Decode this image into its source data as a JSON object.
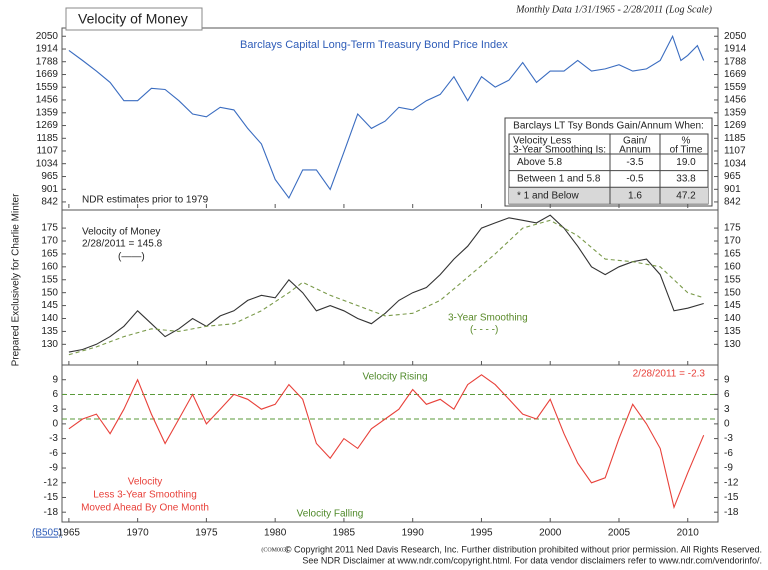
{
  "header": {
    "note": "Monthly Data 1/31/1965 - 2/28/2011 (Log Scale)",
    "side_label": "Prepared Exclusively for Charlie Minter"
  },
  "chart_data": [
    {
      "type": "line",
      "title": "Velocity of Money",
      "subtitle": "Barclays Capital Long-Term Treasury Bond Price Index",
      "log_scale": true,
      "xlim": [
        1964.5,
        2012.2
      ],
      "ylim": [
        815,
        2120
      ],
      "yticks": [
        842,
        901,
        965,
        1034,
        1107,
        1185,
        1269,
        1359,
        1456,
        1559,
        1669,
        1788,
        1914,
        2050
      ],
      "annotations": [
        "NDR estimates prior to 1979"
      ],
      "series": [
        {
          "color": "#3a6cc0",
          "x": [
            1965,
            1966,
            1967,
            1968,
            1969,
            1970,
            1971,
            1972,
            1973,
            1974,
            1975,
            1976,
            1977,
            1978,
            1979,
            1980,
            1981,
            1982,
            1983,
            1984,
            1985,
            1986,
            1987,
            1988,
            1989,
            1990,
            1991,
            1992,
            1993,
            1994,
            1995,
            1996,
            1997,
            1998,
            1999,
            2000,
            2001,
            2002,
            2003,
            2004,
            2005,
            2006,
            2007,
            2008,
            2008.9,
            2009.5,
            2010,
            2010.7,
            2011.16
          ],
          "values": [
            1900,
            1800,
            1700,
            1600,
            1450,
            1450,
            1550,
            1540,
            1450,
            1350,
            1330,
            1400,
            1380,
            1250,
            1150,
            950,
            860,
            1000,
            1000,
            900,
            1100,
            1350,
            1250,
            1300,
            1400,
            1380,
            1450,
            1500,
            1650,
            1450,
            1650,
            1560,
            1620,
            1780,
            1600,
            1700,
            1700,
            1800,
            1700,
            1720,
            1760,
            1700,
            1720,
            1800,
            2050,
            1800,
            1850,
            1950,
            1800
          ]
        }
      ],
      "table": {
        "title": "Barclays LT Tsy Bonds Gain/Annum When:",
        "columns": [
          [
            "Velocity Less",
            "3-Year Smoothing Is:"
          ],
          [
            "Gain/",
            "Annum"
          ],
          [
            "%",
            "of Time"
          ]
        ],
        "rows": [
          [
            "Above 5.8",
            "-3.5",
            "19.0"
          ],
          [
            "Between 1 and 5.8",
            "-0.5",
            "33.8"
          ],
          [
            "* 1 and Below",
            "1.6",
            "47.2"
          ]
        ]
      }
    },
    {
      "type": "line",
      "xlim": [
        1964.5,
        2012.2
      ],
      "ylim": [
        122,
        182
      ],
      "yticks": [
        130,
        135,
        140,
        145,
        150,
        155,
        160,
        165,
        170,
        175
      ],
      "annotations": [
        "2/28/2011 = 145.8",
        "(——)",
        "(- - - -)"
      ],
      "series": [
        {
          "name": "Velocity of Money",
          "color": "#333333",
          "dash": false,
          "x": [
            1965,
            1966,
            1967,
            1968,
            1969,
            1970,
            1971,
            1972,
            1973,
            1974,
            1975,
            1976,
            1977,
            1978,
            1979,
            1980,
            1981,
            1982,
            1983,
            1984,
            1985,
            1986,
            1987,
            1988,
            1989,
            1990,
            1991,
            1992,
            1993,
            1994,
            1995,
            1996,
            1997,
            1998,
            1999,
            2000,
            2001,
            2002,
            2003,
            2004,
            2005,
            2006,
            2007,
            2008,
            2009,
            2010,
            2011.16
          ],
          "values": [
            127,
            128,
            130,
            133,
            137,
            143,
            138,
            133,
            136,
            140,
            137,
            141,
            143,
            147,
            149,
            148,
            155,
            150,
            143,
            145,
            143,
            140,
            138,
            142,
            147,
            150,
            152,
            157,
            163,
            168,
            175,
            177,
            179,
            178,
            177,
            180,
            175,
            168,
            160,
            157,
            160,
            162,
            163,
            157,
            143,
            144,
            145.8
          ]
        },
        {
          "name": "3-Year Smoothing",
          "color": "#7a9a4a",
          "dash": true,
          "x": [
            1965,
            1967,
            1969,
            1971,
            1973,
            1975,
            1977,
            1979,
            1981,
            1982,
            1984,
            1986,
            1988,
            1990,
            1992,
            1994,
            1996,
            1998,
            2000,
            2002,
            2004,
            2006,
            2008,
            2010,
            2011.16
          ],
          "values": [
            126,
            129,
            133,
            136,
            135,
            137,
            138,
            143,
            150,
            154,
            149,
            145,
            141,
            142,
            147,
            156,
            165,
            175,
            178,
            172,
            163,
            162,
            160,
            150,
            148
          ]
        }
      ]
    },
    {
      "type": "line",
      "xlim": [
        1964.5,
        2012.2
      ],
      "ylim": [
        -20,
        12
      ],
      "yticks": [
        -18,
        -15,
        -12,
        -9,
        -6,
        -3,
        0,
        3,
        6,
        9
      ],
      "xticks": [
        1965,
        1970,
        1975,
        1980,
        1985,
        1990,
        1995,
        2000,
        2005,
        2010
      ],
      "reference_lines": [
        {
          "value": 6,
          "color": "#5a9a3a"
        },
        {
          "value": 1,
          "color": "#5a9a3a"
        }
      ],
      "annotations": [
        "Velocity Rising",
        "Velocity Falling",
        "2/28/2011 = -2.3",
        "Velocity",
        "Less 3-Year Smoothing",
        "Moved Ahead By One Month"
      ],
      "series": [
        {
          "color": "#e8413a",
          "x": [
            1965,
            1966,
            1967,
            1968,
            1969,
            1970,
            1971,
            1972,
            1973,
            1974,
            1975,
            1976,
            1977,
            1978,
            1979,
            1980,
            1981,
            1982,
            1983,
            1984,
            1985,
            1986,
            1987,
            1988,
            1989,
            1990,
            1991,
            1992,
            1993,
            1994,
            1995,
            1996,
            1997,
            1998,
            1999,
            2000,
            2001,
            2002,
            2003,
            2004,
            2005,
            2006,
            2007,
            2008,
            2009,
            2010,
            2011.16
          ],
          "values": [
            -1,
            1,
            2,
            -2,
            3,
            9,
            2,
            -4,
            1,
            6,
            0,
            3,
            6,
            5,
            3,
            4,
            8,
            5,
            -4,
            -7,
            -3,
            -5,
            -1,
            1,
            3,
            7,
            4,
            5,
            3,
            8,
            10,
            8,
            5,
            2,
            1,
            5,
            -2,
            -8,
            -12,
            -11,
            -3,
            4,
            0,
            -5,
            -17,
            -10,
            -2.3
          ]
        }
      ]
    }
  ],
  "footer": {
    "code": "(B505)",
    "ref": "(COM003)",
    "lines": [
      "© Copyright 2011 Ned Davis Research, Inc.  Further distribution prohibited without prior permission.  All Rights Reserved.",
      "See NDR Disclaimer at www.ndr.com/copyright.html.  For data vendor disclaimers refer to www.ndr.com/vendorinfo/."
    ]
  }
}
